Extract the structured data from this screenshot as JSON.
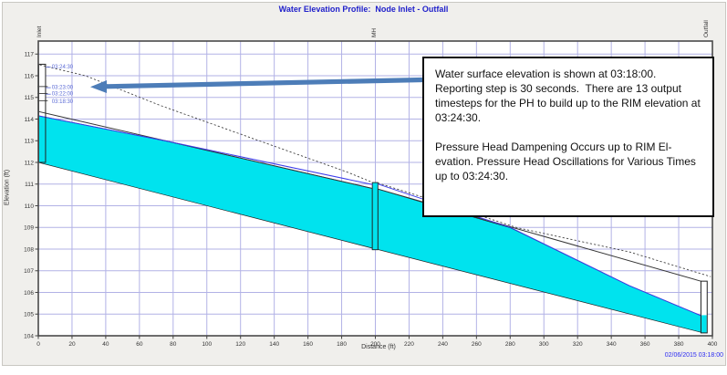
{
  "title": "Water Elevation Profile:  Node Inlet - Outfall",
  "timestamp": "02/06/2015 03:18:00",
  "annotation": {
    "para1": "Water surface elevation is shown at 03:18:00. Reporting step is 30 seconds.  There are 13 output timesteps for the PH to build up to the RIM elevation at 03:24:30.",
    "para2": "Pressure Head Dampening Occurs up to RIM El-evation. Pressure Head Oscillations for Various Times up to 03:24:30."
  },
  "chart_data": {
    "type": "line",
    "subtype": "hydraulic-profile",
    "title": "Water Elevation Profile:  Node Inlet - Outfall",
    "xlabel": "Distance (ft)",
    "ylabel": "Elevation (ft)",
    "xlim": [
      0,
      400
    ],
    "ylim": [
      104,
      117.6
    ],
    "grid": true,
    "xticks": [
      0,
      20,
      40,
      60,
      80,
      100,
      120,
      140,
      160,
      180,
      200,
      220,
      240,
      260,
      280,
      300,
      320,
      340,
      360,
      380,
      400
    ],
    "yticks": [
      104,
      105,
      106,
      107,
      108,
      109,
      110,
      111,
      112,
      113,
      114,
      115,
      116,
      117
    ],
    "nodes": [
      {
        "name": "Inlet",
        "x": 0,
        "label_x": 1.5,
        "box": [
          0.25,
          4.3
        ],
        "invert": 112.0,
        "rim": 116.53
      },
      {
        "name": "MH",
        "x": 200,
        "label_x": 200.3,
        "box": [
          198.2,
          201.5
        ],
        "invert": 107.97,
        "rim": 111.07
      },
      {
        "name": "Outfall",
        "x": 400,
        "label_x": 397.4,
        "box": [
          393.2,
          396.9
        ],
        "invert": 104.13,
        "top": 106.52,
        "water": 104.95
      }
    ],
    "conduits": [
      {
        "invert": [
          [
            0,
            112.0
          ],
          [
            198.2,
            108.04
          ]
        ],
        "crown": [
          [
            0,
            114.35
          ],
          [
            198.2,
            110.8
          ]
        ],
        "water_top": [
          [
            0,
            114.15
          ],
          [
            77,
            112.97
          ],
          [
            198.2,
            110.8
          ]
        ]
      },
      {
        "invert": [
          [
            201.5,
            107.98
          ],
          [
            393.2,
            104.16
          ]
        ],
        "crown": [
          [
            201.5,
            110.77
          ],
          [
            393.2,
            106.52
          ]
        ],
        "water_top": [
          [
            201.5,
            110.77
          ],
          [
            237,
            109.95
          ],
          [
            280,
            108.99
          ],
          [
            350.7,
            106.31
          ],
          [
            393.2,
            104.93
          ]
        ]
      }
    ],
    "water_surface": [
      [
        [
          0,
          114.15
        ],
        [
          77,
          112.97
        ],
        [
          198.2,
          110.98
        ]
      ],
      [
        [
          201.5,
          111.0
        ],
        [
          233,
          110.18
        ],
        [
          280,
          109.0
        ],
        [
          350.7,
          106.31
        ],
        [
          393.2,
          104.93
        ]
      ]
    ],
    "max_hgl": [
      [
        [
          0.8,
          116.5
        ],
        [
          28,
          116.0
        ],
        [
          72,
          114.64
        ],
        [
          128,
          113.08
        ],
        [
          183,
          111.56
        ],
        [
          198.2,
          111.08
        ]
      ],
      [
        [
          201.5,
          111.05
        ],
        [
          237,
          110.18
        ],
        [
          284,
          108.99
        ],
        [
          350.7,
          107.87
        ],
        [
          399,
          106.73
        ]
      ]
    ],
    "riser_level_marks": [
      115.5,
      115.18,
      114.85
    ],
    "time_labels": [
      {
        "label": "03:24:30",
        "elev": 116.42,
        "leader": true
      },
      {
        "label": "03:23:00",
        "elev": 115.47,
        "leader": true
      },
      {
        "label": "03:22:00",
        "elev": 115.17,
        "leader": true
      },
      {
        "label": "03:18:30",
        "elev": 114.83,
        "leader": false
      }
    ],
    "colors": {
      "water_fill": "#00e3ee",
      "grid": "#b2b2e6",
      "arrow": "#4d7db8",
      "water_surface_line": "#3c3cea",
      "time_label": "#5b6bd6",
      "title_text": "#2121cb",
      "timestamp_text": "#2b2bf2"
    }
  }
}
